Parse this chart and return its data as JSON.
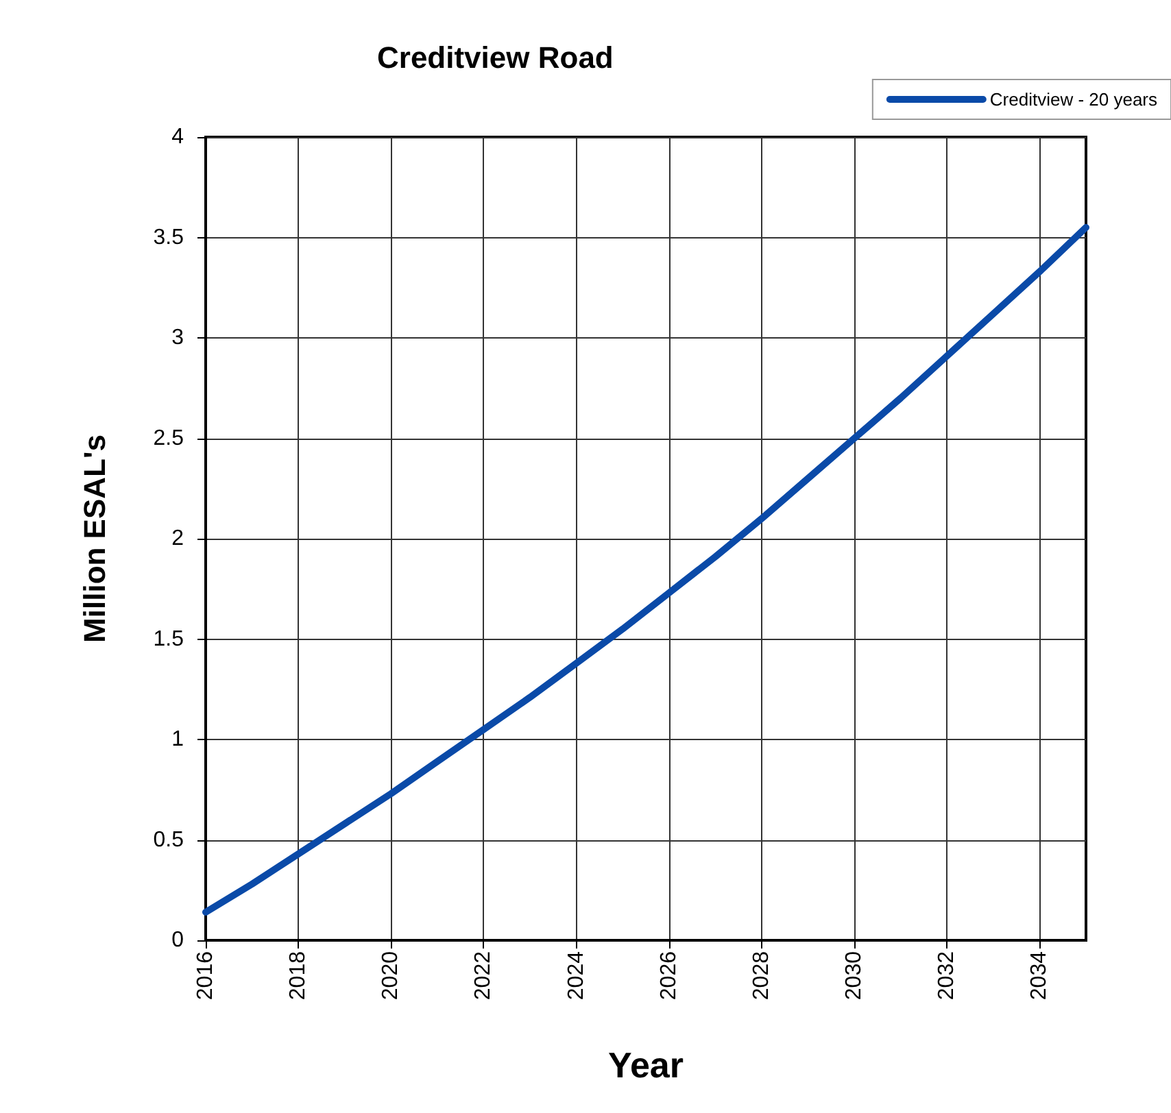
{
  "chart_data": {
    "type": "line",
    "title": "Creditview Road",
    "xlabel": "Year",
    "ylabel": "Million ESAL's",
    "x": [
      2016,
      2017,
      2018,
      2019,
      2020,
      2021,
      2022,
      2023,
      2024,
      2025,
      2026,
      2027,
      2028,
      2029,
      2030,
      2031,
      2032,
      2033,
      2034,
      2035
    ],
    "series": [
      {
        "name": "Creditview - 20 years",
        "color": "#0a4aa8",
        "values": [
          0.14,
          0.28,
          0.43,
          0.58,
          0.73,
          0.89,
          1.05,
          1.21,
          1.38,
          1.55,
          1.73,
          1.91,
          2.1,
          2.3,
          2.5,
          2.7,
          2.91,
          3.12,
          3.33,
          3.55
        ]
      }
    ],
    "xlim": [
      2016,
      2035
    ],
    "xticks": [
      2016,
      2018,
      2020,
      2022,
      2024,
      2026,
      2028,
      2030,
      2032,
      2034
    ],
    "ylim": [
      0,
      4
    ],
    "yticks": [
      0,
      0.5,
      1,
      1.5,
      2,
      2.5,
      3,
      3.5,
      4
    ],
    "grid": true,
    "legend": "top right",
    "marker": "none",
    "line_style": "solid"
  }
}
